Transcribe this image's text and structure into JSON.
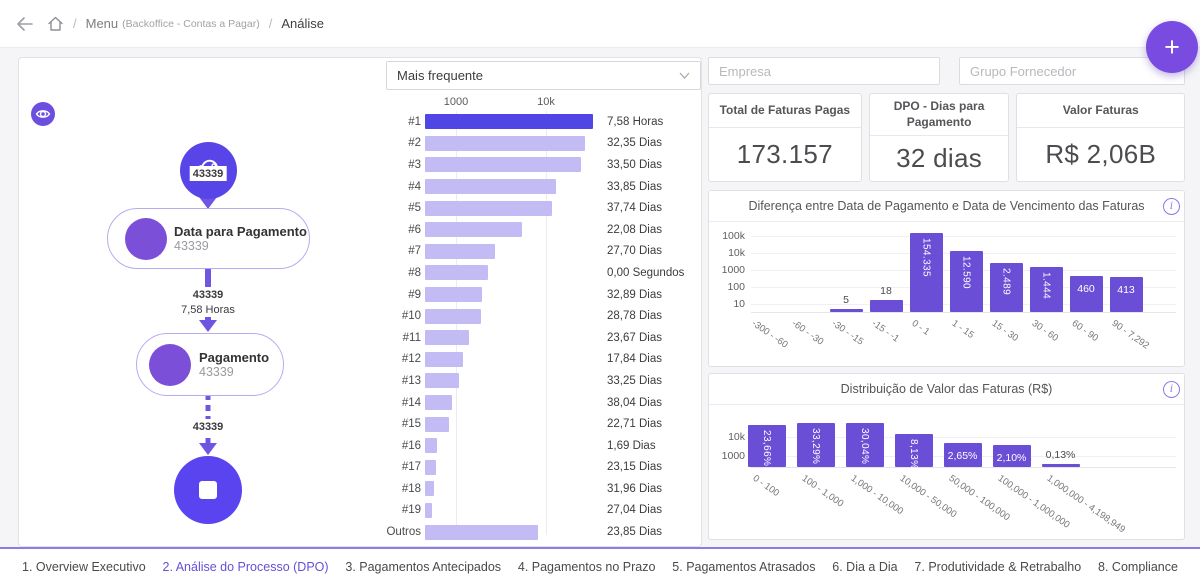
{
  "breadcrumb": {
    "separator": "/",
    "menu_label": "Menu",
    "menu_context": "(Backoffice - Contas a Pagar)",
    "current_page": "Análise"
  },
  "fab": {
    "label": "+"
  },
  "icons": {
    "info_glyph": "i"
  },
  "process_map": {
    "nodes": [
      {
        "title": "Data para Pagamento",
        "count": "43339"
      },
      {
        "title": "Pagamento",
        "count": "43339"
      }
    ],
    "edges": [
      {
        "count": "43339"
      },
      {
        "count": "43339",
        "duration": "7,58 Horas"
      },
      {
        "count": "43339"
      }
    ]
  },
  "variants_panel": {
    "dropdown_value": "Mais frequente",
    "axis_ticks": [
      "1000",
      "10k"
    ],
    "items": [
      {
        "rank": "#1",
        "duration": "7,58 Horas",
        "pct": 100
      },
      {
        "rank": "#2",
        "duration": "32,35 Dias",
        "pct": 95.2
      },
      {
        "rank": "#3",
        "duration": "33,50 Dias",
        "pct": 92.9
      },
      {
        "rank": "#4",
        "duration": "33,85 Dias",
        "pct": 78.0
      },
      {
        "rank": "#5",
        "duration": "37,74 Dias",
        "pct": 75.6
      },
      {
        "rank": "#6",
        "duration": "22,08 Dias",
        "pct": 57.7
      },
      {
        "rank": "#7",
        "duration": "27,70 Dias",
        "pct": 41.7
      },
      {
        "rank": "#8",
        "duration": "0,00 Segundos",
        "pct": 37.5
      },
      {
        "rank": "#9",
        "duration": "32,89 Dias",
        "pct": 33.9
      },
      {
        "rank": "#10",
        "duration": "28,78 Dias",
        "pct": 33.3
      },
      {
        "rank": "#11",
        "duration": "23,67 Dias",
        "pct": 26.2
      },
      {
        "rank": "#12",
        "duration": "17,84 Dias",
        "pct": 22.6
      },
      {
        "rank": "#13",
        "duration": "33,25 Dias",
        "pct": 20.2
      },
      {
        "rank": "#14",
        "duration": "38,04 Dias",
        "pct": 16.1
      },
      {
        "rank": "#15",
        "duration": "22,71 Dias",
        "pct": 14.3
      },
      {
        "rank": "#16",
        "duration": "1,69 Dias",
        "pct": 7.1
      },
      {
        "rank": "#17",
        "duration": "23,15 Dias",
        "pct": 6.5
      },
      {
        "rank": "#18",
        "duration": "31,96 Dias",
        "pct": 5.4
      },
      {
        "rank": "#19",
        "duration": "27,04 Dias",
        "pct": 4.2
      },
      {
        "rank": "Outros",
        "duration": "23,85 Dias",
        "pct": 67.3
      }
    ]
  },
  "filters": {
    "empresa_placeholder": "Empresa",
    "grupo_placeholder": "Grupo Fornecedor"
  },
  "kpis": [
    {
      "title": "Total de Faturas Pagas",
      "value": "173.157"
    },
    {
      "title": "DPO - Dias para Pagamento",
      "value": "32 dias"
    },
    {
      "title": "Valor Faturas",
      "value": "R$ 2,06B"
    }
  ],
  "chart_data": [
    {
      "type": "bar",
      "title": "Diferença entre Data de Pagamento e Data de Vencimento das Faturas",
      "yaxis": "log",
      "ytick_labels": [
        "100k",
        "10k",
        "1000",
        "100",
        "10"
      ],
      "categories": [
        "-300 - -60",
        "-60 - -30",
        "-30 - -15",
        "-15 - -1",
        "0 - 1",
        "1 - 15",
        "15 - 30",
        "30 - 60",
        "60 - 90",
        "90 - 7,292"
      ],
      "values": [
        0,
        0,
        5,
        18,
        154335,
        12590,
        2489,
        1444,
        460,
        413
      ],
      "value_labels": [
        "",
        "",
        "5",
        "18",
        "154.335",
        "12.590",
        "2.489",
        "1.444",
        "460",
        "413"
      ],
      "label_pos": [
        "",
        "",
        "above",
        "above",
        "rot",
        "rot",
        "rot",
        "rot",
        "h",
        "h"
      ],
      "bar_color": "#6b4ed6"
    },
    {
      "type": "bar",
      "title": "Distribuição de Valor das Faturas (R$)",
      "yaxis": "log",
      "ytick_labels": [
        "10k",
        "1000"
      ],
      "categories": [
        "0 - 100",
        "100 - 1,000",
        "1,000 - 10,000",
        "10,000 - 50,000",
        "50,000 - 100,000",
        "100,000 - 1,000,000",
        "1,000,000 - 4,198,949"
      ],
      "values_pct": [
        23.66,
        33.29,
        30.04,
        8.13,
        2.65,
        2.1,
        0.13
      ],
      "value_labels": [
        "23,66%",
        "33,29%",
        "30,04%",
        "8,13%",
        "2,65%",
        "2,10%",
        "0,13%"
      ],
      "label_pos": [
        "rot",
        "rot",
        "rot",
        "rot",
        "h",
        "h",
        "above"
      ],
      "bar_color": "#6b4ed6"
    }
  ],
  "tabs": [
    {
      "label": "1. Overview Executivo",
      "active": false
    },
    {
      "label": "2. Análise do Processo (DPO)",
      "active": true
    },
    {
      "label": "3. Pagamentos Antecipados",
      "active": false
    },
    {
      "label": "4. Pagamentos no Prazo",
      "active": false
    },
    {
      "label": "5. Pagamentos Atrasados",
      "active": false
    },
    {
      "label": "6. Dia a Dia",
      "active": false
    },
    {
      "label": "7. Produtividade & Retrabalho",
      "active": false
    },
    {
      "label": "8. Compliance",
      "active": false
    }
  ]
}
